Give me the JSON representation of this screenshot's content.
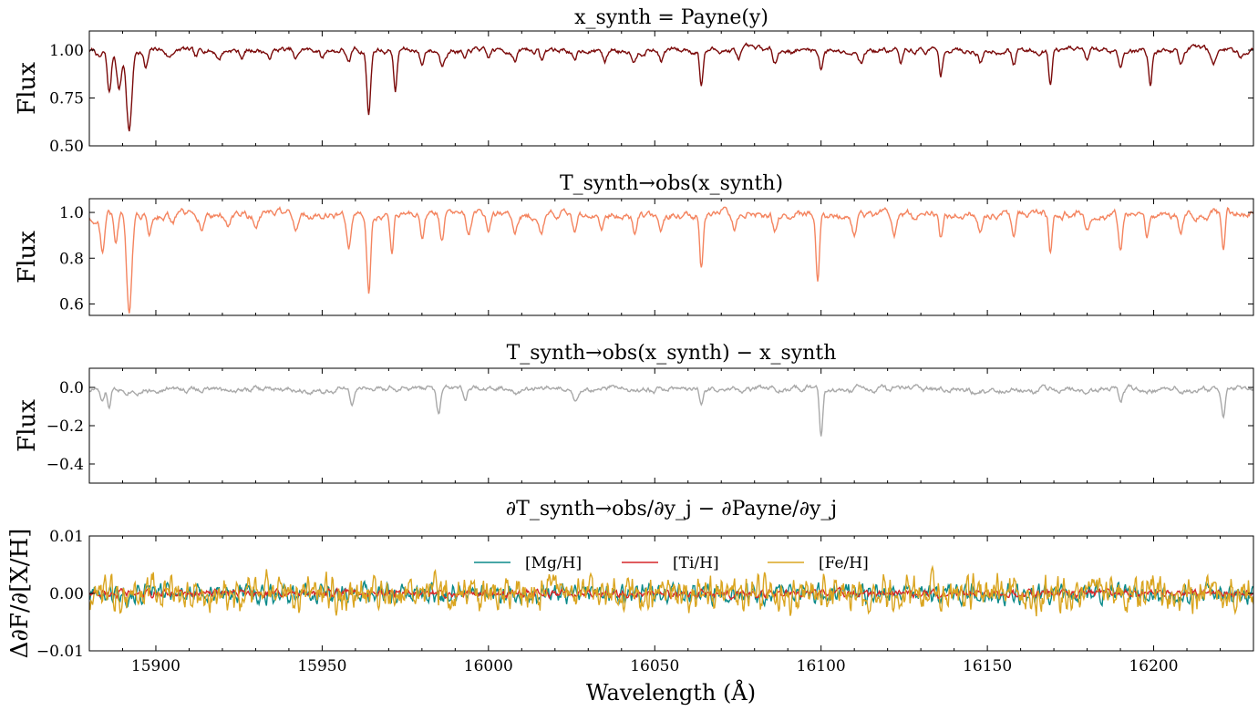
{
  "figure": {
    "xlabel": "Wavelength (Å)"
  },
  "colors": {
    "panel1": "#7b0a0a",
    "panel2": "#f4845f",
    "panel3": "#a9a9a9",
    "mg": "#0a8a8a",
    "ti": "#d62728",
    "fe": "#daa520"
  },
  "chart_data": [
    {
      "type": "line",
      "title": "x_synth = Payne(y)",
      "ylabel": "Flux",
      "xlim": [
        15880,
        16230
      ],
      "ylim": [
        0.5,
        1.1
      ],
      "yticks": [
        "0.50",
        "0.75",
        "1.00"
      ],
      "ytick_values": [
        0.5,
        0.75,
        1.0
      ],
      "baseline": 1.0,
      "noise": 0.018,
      "absorption_lines": [
        [
          15883,
          0.04,
          0.8
        ],
        [
          15886,
          0.23,
          0.6
        ],
        [
          15889,
          0.2,
          0.7
        ],
        [
          15892,
          0.42,
          0.8
        ],
        [
          15897,
          0.1,
          0.6
        ],
        [
          15904,
          0.04,
          0.7
        ],
        [
          15912,
          0.05,
          0.6
        ],
        [
          15919,
          0.05,
          0.6
        ],
        [
          15926,
          0.04,
          0.6
        ],
        [
          15934,
          0.05,
          0.6
        ],
        [
          15942,
          0.06,
          0.6
        ],
        [
          15950,
          0.04,
          0.6
        ],
        [
          15958,
          0.07,
          0.6
        ],
        [
          15964,
          0.34,
          0.55
        ],
        [
          15972,
          0.21,
          0.5
        ],
        [
          15980,
          0.07,
          0.6
        ],
        [
          15986,
          0.08,
          0.6
        ],
        [
          15993,
          0.06,
          0.6
        ],
        [
          16000,
          0.05,
          0.6
        ],
        [
          16008,
          0.06,
          0.6
        ],
        [
          16016,
          0.05,
          0.6
        ],
        [
          16026,
          0.07,
          0.6
        ],
        [
          16035,
          0.06,
          0.6
        ],
        [
          16044,
          0.05,
          0.6
        ],
        [
          16052,
          0.06,
          0.6
        ],
        [
          16064,
          0.18,
          0.5
        ],
        [
          16075,
          0.05,
          0.6
        ],
        [
          16086,
          0.06,
          0.6
        ],
        [
          16100,
          0.1,
          0.5
        ],
        [
          16112,
          0.06,
          0.6
        ],
        [
          16124,
          0.07,
          0.6
        ],
        [
          16136,
          0.13,
          0.5
        ],
        [
          16148,
          0.07,
          0.6
        ],
        [
          16158,
          0.07,
          0.6
        ],
        [
          16169,
          0.17,
          0.5
        ],
        [
          16180,
          0.06,
          0.6
        ],
        [
          16190,
          0.08,
          0.6
        ],
        [
          16199,
          0.19,
          0.5
        ],
        [
          16208,
          0.07,
          0.6
        ],
        [
          16218,
          0.06,
          0.6
        ],
        [
          16226,
          0.04,
          0.6
        ]
      ]
    },
    {
      "type": "line",
      "title": "T_synth→obs(x_synth)",
      "ylabel": "Flux",
      "xlim": [
        15880,
        16230
      ],
      "ylim": [
        0.55,
        1.06
      ],
      "yticks": [
        "0.6",
        "0.8",
        "1.0"
      ],
      "ytick_values": [
        0.6,
        0.8,
        1.0
      ],
      "baseline": 0.99,
      "noise": 0.02,
      "absorption_lines": [
        [
          15882,
          0.06,
          0.8
        ],
        [
          15884,
          0.18,
          0.6
        ],
        [
          15888,
          0.12,
          0.6
        ],
        [
          15892,
          0.42,
          0.8
        ],
        [
          15898,
          0.08,
          0.6
        ],
        [
          15905,
          0.05,
          0.6
        ],
        [
          15914,
          0.06,
          0.6
        ],
        [
          15922,
          0.05,
          0.6
        ],
        [
          15930,
          0.06,
          0.6
        ],
        [
          15942,
          0.07,
          0.6
        ],
        [
          15958,
          0.13,
          0.6
        ],
        [
          15964,
          0.34,
          0.55
        ],
        [
          15971,
          0.18,
          0.5
        ],
        [
          15980,
          0.1,
          0.6
        ],
        [
          15986,
          0.13,
          0.6
        ],
        [
          15994,
          0.08,
          0.6
        ],
        [
          16000,
          0.09,
          0.6
        ],
        [
          16008,
          0.07,
          0.6
        ],
        [
          16016,
          0.07,
          0.6
        ],
        [
          16026,
          0.1,
          0.6
        ],
        [
          16034,
          0.07,
          0.6
        ],
        [
          16044,
          0.08,
          0.6
        ],
        [
          16052,
          0.06,
          0.6
        ],
        [
          16064,
          0.23,
          0.5
        ],
        [
          16074,
          0.06,
          0.6
        ],
        [
          16086,
          0.06,
          0.6
        ],
        [
          16099,
          0.27,
          0.5
        ],
        [
          16110,
          0.08,
          0.6
        ],
        [
          16122,
          0.09,
          0.6
        ],
        [
          16136,
          0.11,
          0.5
        ],
        [
          16148,
          0.08,
          0.6
        ],
        [
          16158,
          0.09,
          0.6
        ],
        [
          16169,
          0.17,
          0.5
        ],
        [
          16180,
          0.07,
          0.6
        ],
        [
          16190,
          0.16,
          0.6
        ],
        [
          16198,
          0.1,
          0.5
        ],
        [
          16208,
          0.08,
          0.6
        ],
        [
          16221,
          0.17,
          0.5
        ]
      ]
    },
    {
      "type": "line",
      "title": "T_synth→obs(x_synth) − x_synth",
      "ylabel": "Flux",
      "xlim": [
        15880,
        16230
      ],
      "ylim": [
        -0.5,
        0.1
      ],
      "yticks": [
        "−0.4",
        "−0.2",
        "0.0"
      ],
      "ytick_values": [
        -0.4,
        -0.2,
        0.0
      ],
      "baseline": -0.01,
      "noise": 0.018,
      "absorption_lines": [
        [
          15884,
          0.07,
          0.6
        ],
        [
          15886,
          0.11,
          0.5
        ],
        [
          15959,
          0.1,
          0.5
        ],
        [
          15985,
          0.13,
          0.6
        ],
        [
          15993,
          0.08,
          0.6
        ],
        [
          16026,
          0.05,
          0.6
        ],
        [
          16064,
          0.08,
          0.5
        ],
        [
          16100,
          0.25,
          0.5
        ],
        [
          16190,
          0.05,
          0.6
        ],
        [
          16221,
          0.15,
          0.5
        ]
      ]
    },
    {
      "type": "line",
      "title": "∂T_synth→obs/∂y_j − ∂Payne/∂y_j",
      "ylabel": "Δ∂F/∂[X/H]",
      "xlabel": "Wavelength (Å)",
      "xlim": [
        15880,
        16230
      ],
      "ylim": [
        -0.01,
        0.01
      ],
      "yticks": [
        "−0.01",
        "0.00",
        "0.01"
      ],
      "ytick_values": [
        -0.01,
        0.0,
        0.01
      ],
      "xticks": [
        "15900",
        "15950",
        "16000",
        "16050",
        "16100",
        "16150",
        "16200"
      ],
      "xtick_values": [
        15900,
        15950,
        16000,
        16050,
        16100,
        16150,
        16200
      ],
      "legend_position": "top-center",
      "series": [
        {
          "name": "[Mg/H]",
          "color": "#0a8a8a",
          "amplitude": 0.0013,
          "period": 2.2
        },
        {
          "name": "[Ti/H]",
          "color": "#d62728",
          "amplitude": 0.0005,
          "period": 2.6
        },
        {
          "name": "[Fe/H]",
          "color": "#daa520",
          "amplitude": 0.0024,
          "period": 1.8
        }
      ]
    }
  ]
}
